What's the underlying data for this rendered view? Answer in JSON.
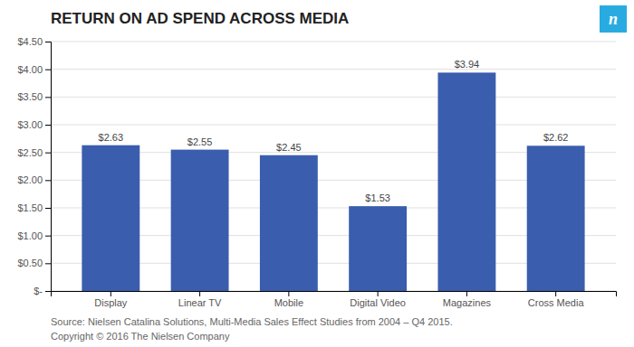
{
  "chart_data": {
    "type": "bar",
    "title": "RETURN ON AD SPEND ACROSS MEDIA",
    "categories": [
      "Display",
      "Linear TV",
      "Mobile",
      "Digital Video",
      "Magazines",
      "Cross Media"
    ],
    "values": [
      2.63,
      2.55,
      2.45,
      1.53,
      3.94,
      2.62
    ],
    "value_labels": [
      "$2.63",
      "$2.55",
      "$2.45",
      "$1.53",
      "$3.94",
      "$2.62"
    ],
    "color": "#3a5dae",
    "ylim": [
      0,
      4.5
    ],
    "yticks": [
      {
        "value": 0,
        "label": "$-"
      },
      {
        "value": 0.5,
        "label": "$0.50"
      },
      {
        "value": 1.0,
        "label": "$1.00"
      },
      {
        "value": 1.5,
        "label": "$1.50"
      },
      {
        "value": 2.0,
        "label": "$2.00"
      },
      {
        "value": 2.5,
        "label": "$2.50"
      },
      {
        "value": 3.0,
        "label": "$3.00"
      },
      {
        "value": 3.5,
        "label": "$3.50"
      },
      {
        "value": 4.0,
        "label": "$4.00"
      },
      {
        "value": 4.5,
        "label": "$4.50"
      }
    ],
    "grid": true,
    "data_labels": true,
    "annotations": [
      "Source: Nielsen Catalina Solutions, Multi-Media Sales Effect Studies from 2004 – Q4 2015.",
      "Copyright © 2016 The Nielsen Company",
      "n"
    ]
  }
}
